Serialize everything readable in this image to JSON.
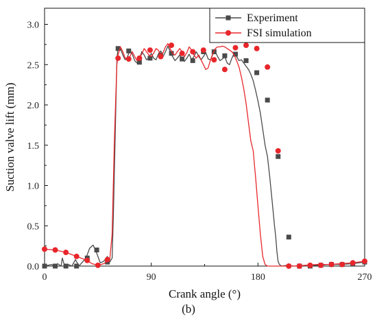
{
  "chart_data": {
    "type": "line",
    "xlabel": "Crank angle (°)",
    "ylabel": "Suction valve lift (mm)",
    "xlim": [
      0,
      270
    ],
    "ylim": [
      0,
      3.2
    ],
    "xticks": [
      0,
      90,
      180,
      270
    ],
    "xtick_labels": [
      "0",
      "90",
      "180",
      "270"
    ],
    "yticks": [
      0,
      0.5,
      1.0,
      1.5,
      2.0,
      2.5,
      3.0
    ],
    "ytick_labels": [
      "0.0",
      "0.5",
      "1.0",
      "1.5",
      "2.0",
      "2.5",
      "3.0"
    ],
    "grid": false,
    "legend_position": "top-right",
    "panel_label": "(b)",
    "series": [
      {
        "name": "Experiment",
        "color": "#4a4a4a",
        "marker": "square",
        "line": [
          [
            0,
            0.0
          ],
          [
            3,
            0.01
          ],
          [
            6,
            0.02
          ],
          [
            8,
            0.0
          ],
          [
            11,
            0.03
          ],
          [
            14,
            0.0
          ],
          [
            15,
            0.1
          ],
          [
            17,
            0.0
          ],
          [
            20,
            0.02
          ],
          [
            23,
            0.0
          ],
          [
            26,
            0.08
          ],
          [
            29,
            0.0
          ],
          [
            32,
            0.05
          ],
          [
            35,
            0.1
          ],
          [
            38,
            0.22
          ],
          [
            41,
            0.26
          ],
          [
            44,
            0.16
          ],
          [
            47,
            0.04
          ],
          [
            50,
            0.06
          ],
          [
            53,
            0.12
          ],
          [
            55,
            0.05
          ],
          [
            57,
            0.1
          ],
          [
            58,
            0.6
          ],
          [
            60,
            1.9
          ],
          [
            61,
            2.55
          ],
          [
            62,
            2.72
          ],
          [
            64,
            2.7
          ],
          [
            66,
            2.62
          ],
          [
            68,
            2.56
          ],
          [
            70,
            2.6
          ],
          [
            72,
            2.68
          ],
          [
            74,
            2.63
          ],
          [
            76,
            2.55
          ],
          [
            78,
            2.52
          ],
          [
            80,
            2.57
          ],
          [
            82,
            2.66
          ],
          [
            84,
            2.62
          ],
          [
            86,
            2.56
          ],
          [
            88,
            2.59
          ],
          [
            90,
            2.64
          ],
          [
            92,
            2.58
          ],
          [
            94,
            2.56
          ],
          [
            96,
            2.63
          ],
          [
            98,
            2.67
          ],
          [
            100,
            2.6
          ],
          [
            102,
            2.66
          ],
          [
            104,
            2.73
          ],
          [
            106,
            2.66
          ],
          [
            108,
            2.6
          ],
          [
            110,
            2.55
          ],
          [
            112,
            2.58
          ],
          [
            114,
            2.62
          ],
          [
            116,
            2.57
          ],
          [
            118,
            2.54
          ],
          [
            120,
            2.58
          ],
          [
            122,
            2.63
          ],
          [
            124,
            2.56
          ],
          [
            126,
            2.6
          ],
          [
            128,
            2.66
          ],
          [
            130,
            2.6
          ],
          [
            132,
            2.56
          ],
          [
            134,
            2.6
          ],
          [
            136,
            2.65
          ],
          [
            138,
            2.57
          ],
          [
            140,
            2.56
          ],
          [
            142,
            2.63
          ],
          [
            144,
            2.66
          ],
          [
            146,
            2.6
          ],
          [
            148,
            2.55
          ],
          [
            150,
            2.57
          ],
          [
            152,
            2.6
          ],
          [
            154,
            2.52
          ],
          [
            156,
            2.5
          ],
          [
            158,
            2.58
          ],
          [
            160,
            2.64
          ],
          [
            162,
            2.6
          ],
          [
            164,
            2.55
          ],
          [
            166,
            2.56
          ],
          [
            168,
            2.52
          ],
          [
            170,
            2.48
          ],
          [
            172,
            2.44
          ],
          [
            174,
            2.38
          ],
          [
            176,
            2.3
          ],
          [
            178,
            2.18
          ],
          [
            180,
            2.05
          ],
          [
            182,
            1.9
          ],
          [
            184,
            1.7
          ],
          [
            186,
            1.5
          ],
          [
            188,
            1.36
          ],
          [
            190,
            1.1
          ],
          [
            192,
            0.8
          ],
          [
            194,
            0.5
          ],
          [
            195,
            0.36
          ],
          [
            196,
            0.18
          ],
          [
            197,
            0.06
          ],
          [
            198,
            0.02
          ],
          [
            200,
            0.0
          ],
          [
            205,
            0.01
          ],
          [
            210,
            0.0
          ],
          [
            220,
            0.0
          ],
          [
            230,
            0.01
          ],
          [
            240,
            0.02
          ],
          [
            250,
            0.02
          ],
          [
            260,
            0.03
          ],
          [
            270,
            0.05
          ]
        ],
        "markers": [
          [
            0,
            0.0
          ],
          [
            9,
            0.0
          ],
          [
            18,
            0.0
          ],
          [
            27,
            0.0
          ],
          [
            36,
            0.1
          ],
          [
            44,
            0.2
          ],
          [
            53,
            0.05
          ],
          [
            62,
            2.7
          ],
          [
            71,
            2.67
          ],
          [
            80,
            2.53
          ],
          [
            89,
            2.58
          ],
          [
            98,
            2.62
          ],
          [
            107,
            2.64
          ],
          [
            116,
            2.57
          ],
          [
            125,
            2.55
          ],
          [
            134,
            2.66
          ],
          [
            143,
            2.66
          ],
          [
            152,
            2.61
          ],
          [
            161,
            2.63
          ],
          [
            170,
            2.55
          ],
          [
            179,
            2.4
          ],
          [
            188,
            2.06
          ],
          [
            197,
            1.36
          ],
          [
            206,
            0.36
          ],
          [
            215,
            0.0
          ],
          [
            224,
            0.0
          ],
          [
            233,
            0.01
          ],
          [
            242,
            0.02
          ],
          [
            251,
            0.02
          ],
          [
            260,
            0.03
          ],
          [
            270,
            0.05
          ]
        ]
      },
      {
        "name": "FSI simulation",
        "color": "#e8262b",
        "marker": "circle",
        "line": [
          [
            0,
            0.21
          ],
          [
            9,
            0.2
          ],
          [
            18,
            0.17
          ],
          [
            27,
            0.12
          ],
          [
            36,
            0.07
          ],
          [
            40,
            0.03
          ],
          [
            45,
            0.01
          ],
          [
            50,
            0.03
          ],
          [
            55,
            0.08
          ],
          [
            57,
            0.4
          ],
          [
            59,
            1.6
          ],
          [
            61,
            2.5
          ],
          [
            62,
            2.62
          ],
          [
            64,
            2.72
          ],
          [
            66,
            2.66
          ],
          [
            68,
            2.58
          ],
          [
            70,
            2.56
          ],
          [
            72,
            2.6
          ],
          [
            74,
            2.66
          ],
          [
            76,
            2.6
          ],
          [
            78,
            2.55
          ],
          [
            80,
            2.58
          ],
          [
            82,
            2.63
          ],
          [
            84,
            2.7
          ],
          [
            86,
            2.66
          ],
          [
            88,
            2.62
          ],
          [
            90,
            2.6
          ],
          [
            92,
            2.64
          ],
          [
            94,
            2.7
          ],
          [
            96,
            2.68
          ],
          [
            98,
            2.62
          ],
          [
            100,
            2.65
          ],
          [
            102,
            2.72
          ],
          [
            104,
            2.76
          ],
          [
            106,
            2.7
          ],
          [
            108,
            2.64
          ],
          [
            110,
            2.62
          ],
          [
            112,
            2.66
          ],
          [
            114,
            2.7
          ],
          [
            116,
            2.66
          ],
          [
            118,
            2.6
          ],
          [
            120,
            2.65
          ],
          [
            122,
            2.72
          ],
          [
            124,
            2.68
          ],
          [
            126,
            2.62
          ],
          [
            128,
            2.58
          ],
          [
            130,
            2.62
          ],
          [
            132,
            2.56
          ],
          [
            134,
            2.5
          ],
          [
            136,
            2.44
          ],
          [
            138,
            2.46
          ],
          [
            140,
            2.56
          ],
          [
            142,
            2.64
          ],
          [
            144,
            2.7
          ],
          [
            146,
            2.72
          ],
          [
            148,
            2.72
          ],
          [
            150,
            2.73
          ],
          [
            152,
            2.72
          ],
          [
            154,
            2.7
          ],
          [
            156,
            2.68
          ],
          [
            158,
            2.66
          ],
          [
            160,
            2.62
          ],
          [
            162,
            2.55
          ],
          [
            164,
            2.47
          ],
          [
            166,
            2.35
          ],
          [
            168,
            2.2
          ],
          [
            170,
            2.02
          ],
          [
            172,
            1.78
          ],
          [
            174,
            1.55
          ],
          [
            176,
            1.43
          ],
          [
            178,
            1.1
          ],
          [
            180,
            0.75
          ],
          [
            182,
            0.4
          ],
          [
            184,
            0.12
          ],
          [
            186,
            0.02
          ],
          [
            188,
            0.0
          ],
          [
            200,
            0.0
          ],
          [
            210,
            0.0
          ],
          [
            220,
            0.01
          ],
          [
            230,
            0.02
          ],
          [
            240,
            0.02
          ],
          [
            250,
            0.03
          ],
          [
            260,
            0.04
          ],
          [
            270,
            0.06
          ]
        ],
        "markers": [
          [
            0,
            0.21
          ],
          [
            9,
            0.2
          ],
          [
            18,
            0.17
          ],
          [
            27,
            0.12
          ],
          [
            36,
            0.07
          ],
          [
            45,
            0.01
          ],
          [
            53,
            0.08
          ],
          [
            62,
            2.58
          ],
          [
            71,
            2.57
          ],
          [
            80,
            2.58
          ],
          [
            89,
            2.68
          ],
          [
            98,
            2.6
          ],
          [
            107,
            2.74
          ],
          [
            116,
            2.64
          ],
          [
            125,
            2.66
          ],
          [
            134,
            2.68
          ],
          [
            143,
            2.56
          ],
          [
            152,
            2.44
          ],
          [
            161,
            2.71
          ],
          [
            170,
            2.74
          ],
          [
            179,
            2.7
          ],
          [
            188,
            2.47
          ],
          [
            197,
            1.43
          ],
          [
            206,
            0.0
          ],
          [
            215,
            0.0
          ],
          [
            224,
            0.01
          ],
          [
            233,
            0.01
          ],
          [
            242,
            0.02
          ],
          [
            251,
            0.02
          ],
          [
            260,
            0.04
          ],
          [
            270,
            0.06
          ]
        ]
      }
    ]
  }
}
